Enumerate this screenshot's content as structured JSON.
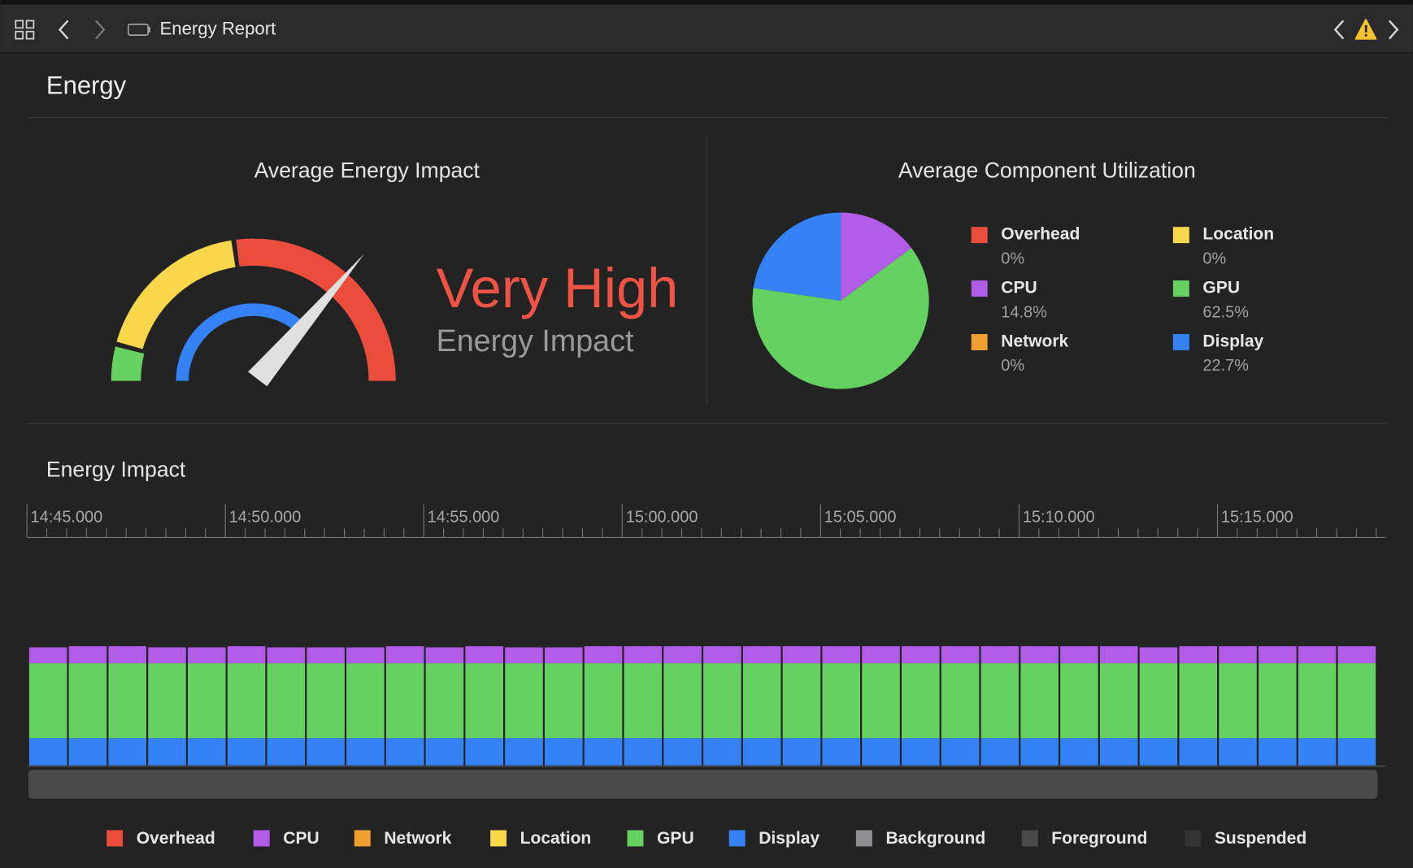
{
  "toolbar": {
    "title": "Energy Report"
  },
  "header": {
    "title": "Energy"
  },
  "gauge": {
    "title": "Average Energy Impact",
    "level": "Very High",
    "caption": "Energy Impact"
  },
  "chart_data": {
    "type": "pie",
    "title": "Average Component Utilization",
    "categories": [
      "Overhead",
      "CPU",
      "Network",
      "Location",
      "GPU",
      "Display"
    ],
    "colors": [
      "#eb4d3d",
      "#b05ce8",
      "#f0a030",
      "#f9d74a",
      "#65d160",
      "#3582f7"
    ],
    "values": [
      0,
      14.8,
      0,
      0,
      62.5,
      22.7
    ],
    "value_labels": [
      "0%",
      "14.8%",
      "0%",
      "0%",
      "62.5%",
      "22.7%"
    ]
  },
  "timeline": {
    "type": "stacked-bar",
    "title": "Energy Impact",
    "time_labels": [
      "14:45.000",
      "14:50.000",
      "14:55.000",
      "15:00.000",
      "15:05.000",
      "15:10.000",
      "15:15.000"
    ],
    "ylim": [
      0,
      100
    ],
    "series": [
      {
        "name": "Overhead",
        "color": "#eb4d3d",
        "values": [
          0,
          0,
          0,
          0,
          0,
          0,
          0,
          0,
          0,
          0,
          0,
          0,
          0,
          0,
          0,
          0,
          0,
          0,
          0,
          0,
          0,
          0,
          0,
          0,
          0,
          0,
          0,
          0,
          0,
          0,
          0,
          0,
          0,
          0
        ]
      },
      {
        "name": "CPU",
        "color": "#b05ce8",
        "values": [
          7,
          7.5,
          7.5,
          7,
          7,
          7.5,
          7,
          7,
          7,
          7.5,
          7,
          7.5,
          7,
          7,
          7.5,
          7.5,
          7.5,
          7.5,
          7.5,
          7.5,
          7.5,
          7.5,
          7.5,
          7.5,
          7.5,
          7.5,
          7.5,
          7.5,
          7,
          7.5,
          7.5,
          7.5,
          7.5,
          7.5
        ]
      },
      {
        "name": "Network",
        "color": "#f0a030",
        "values": [
          0,
          0,
          0,
          0,
          0,
          0,
          0,
          0,
          0,
          0,
          0,
          0,
          0,
          0,
          0,
          0,
          0,
          0,
          0,
          0,
          0,
          0,
          0,
          0,
          0,
          0,
          0,
          0,
          0,
          0,
          0,
          0,
          0,
          0
        ]
      },
      {
        "name": "Location",
        "color": "#f9d74a",
        "values": [
          0,
          0,
          0,
          0,
          0,
          0,
          0,
          0,
          0,
          0,
          0,
          0,
          0,
          0,
          0,
          0,
          0,
          0,
          0,
          0,
          0,
          0,
          0,
          0,
          0,
          0,
          0,
          0,
          0,
          0,
          0,
          0,
          0,
          0
        ]
      },
      {
        "name": "GPU",
        "color": "#65d160",
        "values": [
          33,
          33,
          33,
          33,
          33,
          33,
          33,
          33,
          33,
          33,
          33,
          33,
          33,
          33,
          33,
          33,
          33,
          33,
          33,
          33,
          33,
          33,
          33,
          33,
          33,
          33,
          33,
          33,
          33,
          33,
          33,
          33,
          33,
          33
        ]
      },
      {
        "name": "Display",
        "color": "#3582f7",
        "values": [
          12,
          12,
          12,
          12,
          12,
          12,
          12,
          12,
          12,
          12,
          12,
          12,
          12,
          12,
          12,
          12,
          12,
          12,
          12,
          12,
          12,
          12,
          12,
          12,
          12,
          12,
          12,
          12,
          12,
          12,
          12,
          12,
          12,
          12
        ]
      },
      {
        "name": "Background",
        "color": "#8e8e93",
        "values": [
          0,
          0,
          0,
          0,
          0,
          0,
          0,
          0,
          0,
          0,
          0,
          0,
          0,
          0,
          0,
          0,
          0,
          0,
          0,
          0,
          0,
          0,
          0,
          0,
          0,
          0,
          0,
          0,
          0,
          0,
          0,
          0,
          0,
          0
        ]
      },
      {
        "name": "Foreground",
        "color": "#4a4a4a",
        "values": [
          0,
          0,
          0,
          0,
          0,
          0,
          0,
          0,
          0,
          0,
          0,
          0,
          0,
          0,
          0,
          0,
          0,
          0,
          0,
          0,
          0,
          0,
          0,
          0,
          0,
          0,
          0,
          0,
          0,
          0,
          0,
          0,
          0,
          0
        ]
      },
      {
        "name": "Suspended",
        "color": "#333333",
        "values": [
          0,
          0,
          0,
          0,
          0,
          0,
          0,
          0,
          0,
          0,
          0,
          0,
          0,
          0,
          0,
          0,
          0,
          0,
          0,
          0,
          0,
          0,
          0,
          0,
          0,
          0,
          0,
          0,
          0,
          0,
          0,
          0,
          0,
          0
        ]
      }
    ]
  }
}
